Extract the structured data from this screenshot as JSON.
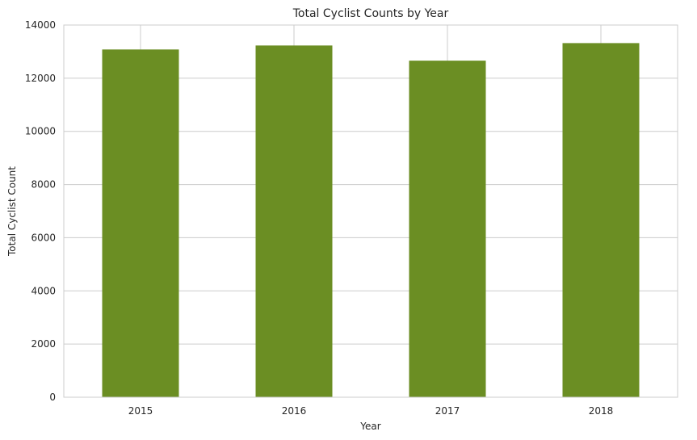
{
  "chart_data": {
    "type": "bar",
    "title": "Total Cyclist Counts by Year",
    "xlabel": "Year",
    "ylabel": "Total Cyclist Count",
    "categories": [
      "2015",
      "2016",
      "2017",
      "2018"
    ],
    "values": [
      13080,
      13230,
      12660,
      13320
    ],
    "ylim": [
      0,
      14000
    ],
    "yticks": [
      0,
      2000,
      4000,
      6000,
      8000,
      10000,
      12000,
      14000
    ],
    "grid": true,
    "bar_color": "#6b8e23",
    "grid_color": "#cccccc",
    "axis_color": "#cccccc"
  }
}
